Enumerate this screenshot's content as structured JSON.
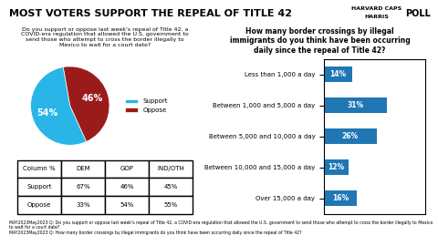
{
  "title": "MOST VOTERS SUPPORT THE REPEAL OF TITLE 42",
  "annotations": [
    "HARVARD CAPS",
    "HARRIS",
    "POLL",
    "MAY2023May2023 Q: Do you support or oppose last week's repeal of Title 42, a COVID-era regulation that allowed the U.S. government to send those who attempt to cross the border illegally to Mexico to wait for a court date?\nMAY2023May2023 Q: How many border crossings by illegal immigrants do you think have been occurring daily since the repeal of Title 42?"
  ],
  "chart_data": [
    {
      "type": "pie",
      "title": "Do you support or oppose last week's repeal of Title 42, a\nCOVID-era regulation that allowed the U.S. government to\nsend those who attempt to cross the border illegally to\nMexico to wait for a court date?",
      "categories": [
        "Support",
        "Oppose"
      ],
      "values": [
        54,
        46
      ],
      "value_labels": [
        "54%",
        "46%"
      ],
      "colors": [
        "#29b5e8",
        "#9b1b1b"
      ],
      "data_labels": true,
      "legend": "center left"
    },
    {
      "type": "table",
      "title": "Column %",
      "categories": [
        "Support",
        "Oppose"
      ],
      "series": [
        {
          "name": "DEM",
          "values": [
            67,
            33
          ],
          "value_labels": [
            "67%",
            "33%"
          ]
        },
        {
          "name": "GOP",
          "values": [
            46,
            54
          ],
          "value_labels": [
            "46%",
            "54%"
          ]
        },
        {
          "name": "IND/OTH",
          "values": [
            45,
            55
          ],
          "value_labels": [
            "45%",
            "55%"
          ]
        }
      ]
    },
    {
      "type": "bar",
      "orientation": "horizontal",
      "title": "How many border crossings by illegal\nimmigrants do you think have been occurring\ndaily since the repeal of Title 42?",
      "categories": [
        "Less than 1,000 a day",
        "Between 1,000 and 5,000 a day",
        "Between 5,000 and 10,000 a day",
        "Between 10,000 and 15,000 a day",
        "Over 15,000 a day"
      ],
      "values": [
        14,
        31,
        26,
        12,
        16
      ],
      "value_labels": [
        "14%",
        "31%",
        "26%",
        "12%",
        "16%"
      ],
      "xlim": [
        0,
        50
      ],
      "tick_labels": "y",
      "data_labels": true
    }
  ]
}
